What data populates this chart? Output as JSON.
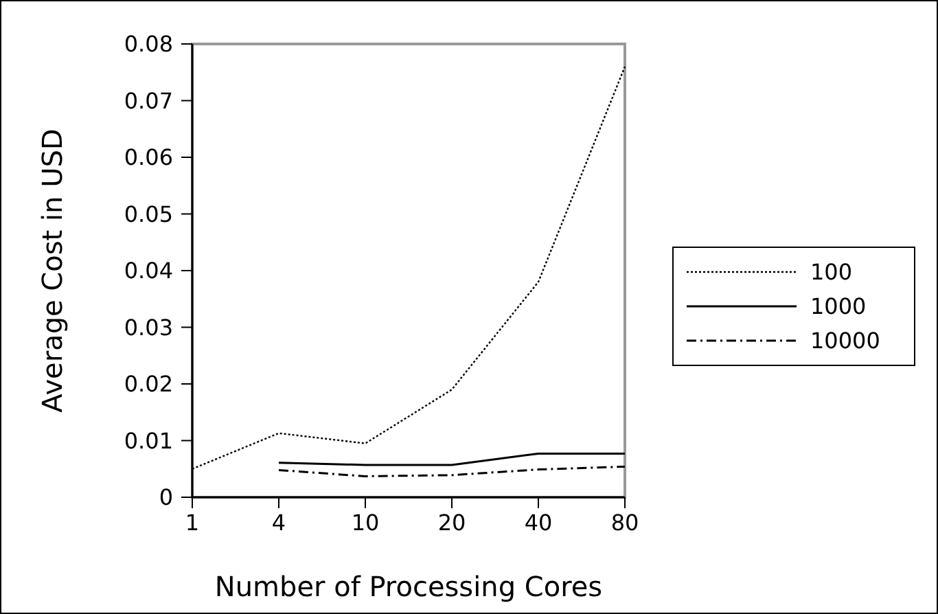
{
  "chart_data": {
    "type": "line",
    "xlabel": "Number of Processing Cores",
    "ylabel": "Average Cost in USD",
    "categories": [
      "1",
      "4",
      "10",
      "20",
      "40",
      "80"
    ],
    "series": [
      {
        "name": "100",
        "color": "#000000",
        "line_style": "dotted",
        "values": [
          0.005,
          0.0113,
          0.0095,
          0.019,
          0.038,
          0.076
        ]
      },
      {
        "name": "1000",
        "color": "#000000",
        "line_style": "solid",
        "values": [
          null,
          0.0061,
          0.0057,
          0.0057,
          0.0077,
          0.0077
        ]
      },
      {
        "name": "10000",
        "color": "#000000",
        "line_style": "dashdot",
        "values": [
          null,
          0.0048,
          0.0037,
          0.0039,
          0.0049,
          0.0054
        ]
      }
    ],
    "ylim": [
      0,
      0.08
    ],
    "yticks": [
      0,
      0.01,
      0.02,
      0.03,
      0.04,
      0.05,
      0.06,
      0.07,
      0.08
    ],
    "legend": "right",
    "marker": "none"
  }
}
